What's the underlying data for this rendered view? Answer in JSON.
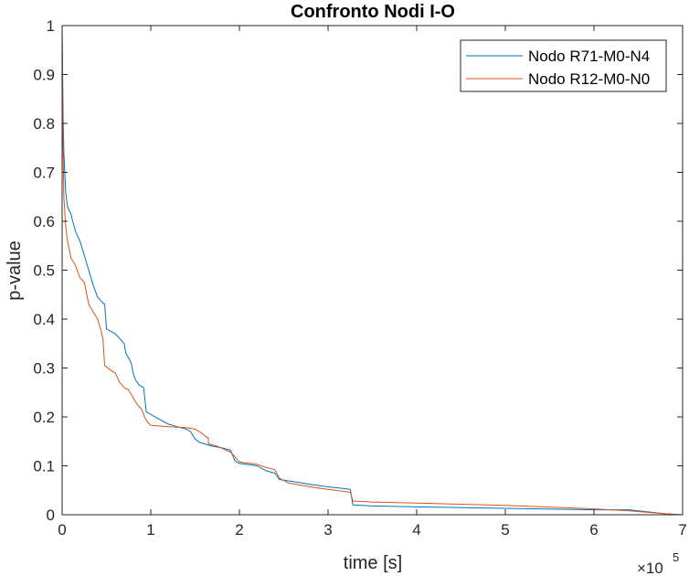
{
  "chart_data": {
    "type": "line",
    "title": "Confronto Nodi I-O",
    "xlabel": "time [s]",
    "ylabel": "p-value",
    "xlim": [
      0,
      7
    ],
    "ylim": [
      0,
      1
    ],
    "x_exponent": {
      "base": "×10",
      "power": "5"
    },
    "xticks": [
      0,
      1,
      2,
      3,
      4,
      5,
      6,
      7
    ],
    "xtick_labels": [
      "0",
      "1",
      "2",
      "3",
      "4",
      "5",
      "6",
      "7"
    ],
    "yticks": [
      0,
      0.1,
      0.2,
      0.3,
      0.4,
      0.5,
      0.6,
      0.7,
      0.8,
      0.9,
      1
    ],
    "ytick_labels": [
      "0",
      "0.1",
      "0.2",
      "0.3",
      "0.4",
      "0.5",
      "0.6",
      "0.7",
      "0.8",
      "0.9",
      "1"
    ],
    "grid": false,
    "legend_position": "top-right",
    "series": [
      {
        "name": "Nodo R71-M0-N4",
        "color": "#0072BD",
        "points": [
          [
            0,
            1.0
          ],
          [
            0.01,
            0.82
          ],
          [
            0.02,
            0.74
          ],
          [
            0.04,
            0.66
          ],
          [
            0.06,
            0.63
          ],
          [
            0.1,
            0.615
          ],
          [
            0.12,
            0.6
          ],
          [
            0.15,
            0.58
          ],
          [
            0.2,
            0.56
          ],
          [
            0.25,
            0.53
          ],
          [
            0.3,
            0.5
          ],
          [
            0.35,
            0.47
          ],
          [
            0.4,
            0.445
          ],
          [
            0.45,
            0.435
          ],
          [
            0.48,
            0.43
          ],
          [
            0.5,
            0.38
          ],
          [
            0.55,
            0.375
          ],
          [
            0.6,
            0.37
          ],
          [
            0.65,
            0.36
          ],
          [
            0.7,
            0.35
          ],
          [
            0.72,
            0.33
          ],
          [
            0.75,
            0.32
          ],
          [
            0.78,
            0.31
          ],
          [
            0.8,
            0.29
          ],
          [
            0.83,
            0.275
          ],
          [
            0.87,
            0.265
          ],
          [
            0.92,
            0.26
          ],
          [
            0.95,
            0.21
          ],
          [
            1.0,
            0.205
          ],
          [
            1.1,
            0.195
          ],
          [
            1.2,
            0.185
          ],
          [
            1.3,
            0.18
          ],
          [
            1.4,
            0.175
          ],
          [
            1.45,
            0.17
          ],
          [
            1.5,
            0.155
          ],
          [
            1.55,
            0.148
          ],
          [
            1.6,
            0.145
          ],
          [
            1.7,
            0.14
          ],
          [
            1.8,
            0.137
          ],
          [
            1.9,
            0.132
          ],
          [
            1.95,
            0.11
          ],
          [
            2.0,
            0.105
          ],
          [
            2.2,
            0.1
          ],
          [
            2.3,
            0.09
          ],
          [
            2.4,
            0.085
          ],
          [
            2.45,
            0.072
          ],
          [
            2.6,
            0.068
          ],
          [
            2.8,
            0.062
          ],
          [
            3.0,
            0.057
          ],
          [
            3.25,
            0.052
          ],
          [
            3.28,
            0.02
          ],
          [
            3.5,
            0.018
          ],
          [
            4.0,
            0.016
          ],
          [
            5.0,
            0.013
          ],
          [
            6.0,
            0.01
          ],
          [
            6.4,
            0.01
          ],
          [
            6.6,
            0.006
          ],
          [
            6.8,
            0.002
          ],
          [
            6.95,
            0.0
          ]
        ]
      },
      {
        "name": "Nodo R12-M0-N0",
        "color": "#D95319",
        "points": [
          [
            0,
            0.98
          ],
          [
            0.01,
            0.76
          ],
          [
            0.02,
            0.65
          ],
          [
            0.04,
            0.59
          ],
          [
            0.06,
            0.56
          ],
          [
            0.1,
            0.525
          ],
          [
            0.15,
            0.51
          ],
          [
            0.2,
            0.485
          ],
          [
            0.25,
            0.475
          ],
          [
            0.3,
            0.43
          ],
          [
            0.35,
            0.415
          ],
          [
            0.4,
            0.4
          ],
          [
            0.44,
            0.375
          ],
          [
            0.46,
            0.36
          ],
          [
            0.48,
            0.305
          ],
          [
            0.55,
            0.295
          ],
          [
            0.6,
            0.29
          ],
          [
            0.65,
            0.27
          ],
          [
            0.7,
            0.26
          ],
          [
            0.75,
            0.255
          ],
          [
            0.8,
            0.24
          ],
          [
            0.85,
            0.225
          ],
          [
            0.9,
            0.215
          ],
          [
            0.93,
            0.2
          ],
          [
            0.96,
            0.19
          ],
          [
            1.0,
            0.183
          ],
          [
            1.2,
            0.18
          ],
          [
            1.4,
            0.178
          ],
          [
            1.5,
            0.175
          ],
          [
            1.55,
            0.17
          ],
          [
            1.62,
            0.16
          ],
          [
            1.65,
            0.157
          ],
          [
            1.65,
            0.145
          ],
          [
            1.75,
            0.14
          ],
          [
            1.9,
            0.128
          ],
          [
            2.0,
            0.108
          ],
          [
            2.2,
            0.103
          ],
          [
            2.28,
            0.098
          ],
          [
            2.4,
            0.092
          ],
          [
            2.45,
            0.075
          ],
          [
            2.55,
            0.065
          ],
          [
            2.8,
            0.057
          ],
          [
            3.0,
            0.052
          ],
          [
            3.25,
            0.046
          ],
          [
            3.28,
            0.028
          ],
          [
            3.5,
            0.026
          ],
          [
            4.0,
            0.024
          ],
          [
            5.0,
            0.019
          ],
          [
            6.0,
            0.012
          ],
          [
            6.4,
            0.008
          ],
          [
            6.8,
            0.002
          ],
          [
            7.0,
            0.0
          ]
        ]
      }
    ]
  }
}
